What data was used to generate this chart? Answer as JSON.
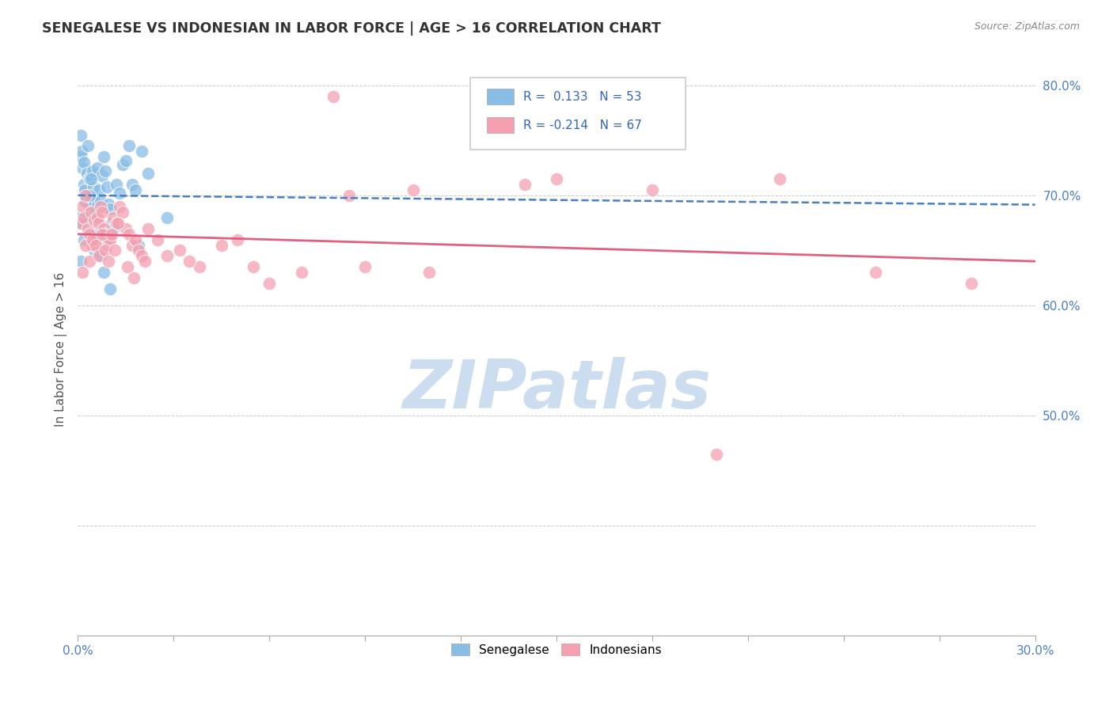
{
  "title": "SENEGALESE VS INDONESIAN IN LABOR FORCE | AGE > 16 CORRELATION CHART",
  "source": "Source: ZipAtlas.com",
  "ylabel": "In Labor Force | Age > 16",
  "xlim": [
    0.0,
    30.0
  ],
  "ylim": [
    30.0,
    82.0
  ],
  "ytick_vals": [
    30.0,
    40.0,
    50.0,
    60.0,
    70.0,
    80.0
  ],
  "ytick_labels": [
    "",
    "",
    "50.0%",
    "60.0%",
    "70.0%",
    "80.0%"
  ],
  "xtick_vals": [
    0.0,
    3.0,
    6.0,
    9.0,
    12.0,
    15.0,
    18.0,
    21.0,
    24.0,
    27.0,
    30.0
  ],
  "xtick_labels": [
    "0.0%",
    "",
    "",
    "",
    "",
    "",
    "",
    "",
    "",
    "",
    "30.0%"
  ],
  "senegalese_color": "#88bde6",
  "indonesian_color": "#f4a0b0",
  "sen_line_color": "#4a7fc1",
  "ind_line_color": "#e06080",
  "senegalese_R": 0.133,
  "senegalese_N": 53,
  "indonesian_R": -0.214,
  "indonesian_N": 67,
  "watermark_text": "ZIPatlas",
  "watermark_color": "#ccddf0",
  "senegalese_x": [
    0.05,
    0.08,
    0.1,
    0.12,
    0.15,
    0.18,
    0.2,
    0.22,
    0.25,
    0.28,
    0.3,
    0.35,
    0.38,
    0.4,
    0.42,
    0.45,
    0.48,
    0.5,
    0.55,
    0.6,
    0.65,
    0.7,
    0.75,
    0.8,
    0.85,
    0.9,
    0.95,
    1.0,
    1.05,
    1.1,
    1.2,
    1.3,
    1.4,
    1.5,
    1.6,
    1.7,
    1.8,
    1.9,
    2.0,
    2.2,
    0.1,
    0.15,
    0.2,
    0.25,
    0.3,
    0.35,
    0.4,
    0.5,
    0.6,
    0.7,
    0.8,
    1.0,
    2.8
  ],
  "senegalese_y": [
    68.0,
    73.5,
    75.5,
    74.0,
    72.5,
    71.0,
    73.0,
    70.5,
    69.5,
    72.0,
    74.5,
    71.5,
    70.0,
    69.0,
    71.8,
    72.2,
    70.8,
    69.5,
    68.0,
    72.5,
    70.5,
    69.5,
    71.8,
    73.5,
    72.2,
    70.8,
    69.2,
    68.8,
    67.5,
    67.0,
    71.0,
    70.2,
    72.8,
    73.2,
    74.5,
    71.0,
    70.5,
    65.5,
    74.0,
    72.0,
    64.0,
    67.5,
    66.0,
    69.5,
    68.0,
    70.0,
    71.5,
    65.0,
    66.5,
    64.5,
    63.0,
    61.5,
    68.0
  ],
  "indonesian_x": [
    0.1,
    0.15,
    0.2,
    0.25,
    0.3,
    0.35,
    0.4,
    0.45,
    0.5,
    0.55,
    0.6,
    0.65,
    0.7,
    0.75,
    0.8,
    0.85,
    0.9,
    0.95,
    1.0,
    1.1,
    1.2,
    1.3,
    1.4,
    1.5,
    1.6,
    1.7,
    1.8,
    1.9,
    2.0,
    2.2,
    2.5,
    2.8,
    3.2,
    3.8,
    4.5,
    5.5,
    7.0,
    8.5,
    10.5,
    14.0,
    0.15,
    0.25,
    0.35,
    0.45,
    0.55,
    0.65,
    0.75,
    0.85,
    0.95,
    1.05,
    1.15,
    1.25,
    1.55,
    1.75,
    2.1,
    3.5,
    5.0,
    6.0,
    9.0,
    20.0,
    25.0,
    8.0,
    15.0,
    28.0,
    22.0,
    18.0,
    11.0
  ],
  "indonesian_y": [
    67.5,
    69.0,
    68.0,
    70.0,
    67.0,
    66.5,
    68.5,
    65.5,
    67.8,
    66.0,
    68.0,
    67.5,
    69.0,
    68.5,
    67.0,
    66.5,
    65.5,
    66.0,
    66.0,
    68.0,
    67.5,
    69.0,
    68.5,
    67.0,
    66.5,
    65.5,
    66.0,
    65.0,
    64.5,
    67.0,
    66.0,
    64.5,
    65.0,
    63.5,
    65.5,
    63.5,
    63.0,
    70.0,
    70.5,
    71.0,
    63.0,
    65.5,
    64.0,
    66.0,
    65.5,
    64.5,
    66.5,
    65.0,
    64.0,
    66.5,
    65.0,
    67.5,
    63.5,
    62.5,
    64.0,
    64.0,
    66.0,
    62.0,
    63.5,
    46.5,
    63.0,
    79.0,
    71.5,
    62.0,
    71.5,
    70.5,
    63.0
  ]
}
